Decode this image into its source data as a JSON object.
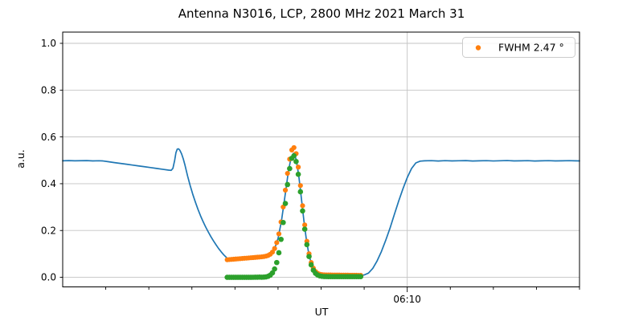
{
  "chart_data": {
    "type": "line+scatter",
    "title": "Antenna N3016, LCP, 2800 MHz 2021 March 31",
    "xlabel": "UT",
    "ylabel": "a.u.",
    "x_axis": {
      "unit": "minutes after 05:30 UT",
      "range_min": [
        0,
        60
      ],
      "major_tick": {
        "t": 40,
        "label": "06:10"
      },
      "minor_ticks_t": [
        5,
        10,
        15,
        20,
        25,
        30,
        35,
        45,
        50,
        55,
        60
      ],
      "grid_on_major": true
    },
    "y_axis": {
      "lim": [
        -0.041,
        1.048
      ],
      "ticks": [
        {
          "v": 0.0,
          "label": "0.0"
        },
        {
          "v": 0.2,
          "label": "0.2"
        },
        {
          "v": 0.4,
          "label": "0.4"
        },
        {
          "v": 0.6,
          "label": "0.6"
        },
        {
          "v": 0.8,
          "label": "0.8"
        },
        {
          "v": 1.0,
          "label": "1.0"
        }
      ],
      "grid": true
    },
    "legend": {
      "label": "FWHM 2.47 °",
      "position": "upper-right",
      "marker": "circle",
      "marker_color": "#ff7f0e"
    },
    "colors": {
      "signal": "#1f77b4",
      "scan": "#ff7f0e",
      "fit": "#2ca02c",
      "grid": "#c3c3c3",
      "spine": "#000000",
      "background": "#ffffff",
      "legend_border": "#cccccc"
    },
    "series": [
      {
        "name": "signal-line",
        "type": "line",
        "color_key": "signal",
        "line_width": 1.7,
        "points": [
          [
            0,
            0.498
          ],
          [
            0.7,
            0.4988
          ],
          [
            1.4,
            0.4978
          ],
          [
            2.1,
            0.4984
          ],
          [
            2.8,
            0.4989
          ],
          [
            3.5,
            0.4976
          ],
          [
            4.2,
            0.4982
          ],
          [
            4.6,
            0.4976
          ],
          [
            5.3,
            0.494
          ],
          [
            6,
            0.4903
          ],
          [
            6.7,
            0.4868
          ],
          [
            7.4,
            0.4833
          ],
          [
            8.1,
            0.4797
          ],
          [
            8.8,
            0.476
          ],
          [
            9.5,
            0.4726
          ],
          [
            10.2,
            0.469
          ],
          [
            10.9,
            0.4654
          ],
          [
            11.6,
            0.4618
          ],
          [
            12.3,
            0.458
          ],
          [
            12.6,
            0.4572
          ],
          [
            12.8,
            0.466
          ],
          [
            13,
            0.5
          ],
          [
            13.15,
            0.533
          ],
          [
            13.3,
            0.548
          ],
          [
            13.45,
            0.549
          ],
          [
            13.6,
            0.543
          ],
          [
            13.8,
            0.528
          ],
          [
            14,
            0.506
          ],
          [
            14.2,
            0.479
          ],
          [
            14.5,
            0.433
          ],
          [
            14.8,
            0.392
          ],
          [
            15.1,
            0.355
          ],
          [
            15.4,
            0.322
          ],
          [
            15.7,
            0.291
          ],
          [
            16,
            0.263
          ],
          [
            16.3,
            0.238
          ],
          [
            16.6,
            0.215
          ],
          [
            16.9,
            0.194
          ],
          [
            17.2,
            0.174
          ],
          [
            17.5,
            0.156
          ],
          [
            17.8,
            0.139
          ],
          [
            18.1,
            0.123
          ],
          [
            18.4,
            0.109
          ],
          [
            18.7,
            0.096
          ],
          [
            19,
            0.085
          ],
          [
            19.2,
            0.079
          ],
          [
            19.4,
            0.0765
          ],
          [
            20,
            0.0785
          ],
          [
            20.8,
            0.081
          ],
          [
            21.6,
            0.0835
          ],
          [
            22.4,
            0.086
          ],
          [
            23.2,
            0.0882
          ],
          [
            23.8,
            0.0905
          ],
          [
            24.2,
            0.096
          ],
          [
            24.6,
            0.122
          ],
          [
            25,
            0.166
          ],
          [
            25.4,
            0.241
          ],
          [
            25.8,
            0.345
          ],
          [
            26.2,
            0.452
          ],
          [
            26.5,
            0.509
          ],
          [
            26.8,
            0.53
          ],
          [
            27.1,
            0.505
          ],
          [
            27.4,
            0.436
          ],
          [
            27.7,
            0.341
          ],
          [
            28,
            0.243
          ],
          [
            28.3,
            0.158
          ],
          [
            28.6,
            0.095
          ],
          [
            28.9,
            0.054
          ],
          [
            29.2,
            0.03
          ],
          [
            29.5,
            0.017
          ],
          [
            29.8,
            0.0115
          ],
          [
            30.2,
            0.0093
          ],
          [
            30.8,
            0.0085
          ],
          [
            31.6,
            0.008
          ],
          [
            32.4,
            0.0082
          ],
          [
            33.2,
            0.0078
          ],
          [
            34,
            0.008
          ],
          [
            34.7,
            0.0085
          ],
          [
            35,
            0.01
          ],
          [
            35.5,
            0.018
          ],
          [
            36,
            0.038
          ],
          [
            36.5,
            0.07
          ],
          [
            37,
            0.11
          ],
          [
            37.5,
            0.158
          ],
          [
            38,
            0.21
          ],
          [
            38.5,
            0.268
          ],
          [
            39,
            0.325
          ],
          [
            39.5,
            0.378
          ],
          [
            40,
            0.426
          ],
          [
            40.5,
            0.465
          ],
          [
            41,
            0.489
          ],
          [
            41.5,
            0.4965
          ],
          [
            42,
            0.4978
          ],
          [
            42.8,
            0.4986
          ],
          [
            43.6,
            0.4971
          ],
          [
            44.4,
            0.4985
          ],
          [
            45.2,
            0.4974
          ],
          [
            46,
            0.4981
          ],
          [
            46.8,
            0.4987
          ],
          [
            47.6,
            0.497
          ],
          [
            48.4,
            0.498
          ],
          [
            49.2,
            0.4986
          ],
          [
            50,
            0.4973
          ],
          [
            50.8,
            0.4981
          ],
          [
            51.6,
            0.499
          ],
          [
            52.4,
            0.4975
          ],
          [
            53.2,
            0.498
          ],
          [
            54,
            0.4986
          ],
          [
            54.8,
            0.497
          ],
          [
            55.6,
            0.4979
          ],
          [
            56.4,
            0.4986
          ],
          [
            57.2,
            0.4974
          ],
          [
            58,
            0.498
          ],
          [
            58.8,
            0.4985
          ],
          [
            59.4,
            0.4978
          ],
          [
            60,
            0.4975
          ]
        ]
      },
      {
        "name": "scan-dots",
        "type": "scatter",
        "color_key": "scan",
        "radius": 3.1,
        "in_legend": true,
        "points": [
          [
            19.1,
            0.075
          ],
          [
            19.35,
            0.0758
          ],
          [
            19.6,
            0.0765
          ],
          [
            19.85,
            0.0773
          ],
          [
            20.1,
            0.0781
          ],
          [
            20.35,
            0.0789
          ],
          [
            20.6,
            0.0796
          ],
          [
            20.85,
            0.0804
          ],
          [
            21.1,
            0.0812
          ],
          [
            21.35,
            0.0819
          ],
          [
            21.6,
            0.0827
          ],
          [
            21.85,
            0.0835
          ],
          [
            22.1,
            0.0842
          ],
          [
            22.35,
            0.085
          ],
          [
            22.6,
            0.0858
          ],
          [
            22.85,
            0.0866
          ],
          [
            23.1,
            0.0874
          ],
          [
            23.35,
            0.0885
          ],
          [
            23.6,
            0.0904
          ],
          [
            23.85,
            0.0933
          ],
          [
            24.1,
            0.0984
          ],
          [
            24.35,
            0.1076
          ],
          [
            24.6,
            0.1231
          ],
          [
            24.85,
            0.1481
          ],
          [
            25.1,
            0.1855
          ],
          [
            25.35,
            0.2366
          ],
          [
            25.6,
            0.3004
          ],
          [
            25.85,
            0.3724
          ],
          [
            26.1,
            0.4442
          ],
          [
            26.35,
            0.5048
          ],
          [
            26.6,
            0.5441
          ],
          [
            26.85,
            0.5543
          ],
          [
            27.1,
            0.5285
          ],
          [
            27.35,
            0.4709
          ],
          [
            27.6,
            0.3923
          ],
          [
            27.85,
            0.3059
          ],
          [
            28.1,
            0.2237
          ],
          [
            28.35,
            0.154
          ],
          [
            28.6,
            0.1005
          ],
          [
            28.85,
            0.0631
          ],
          [
            29.1,
            0.0391
          ],
          [
            29.35,
            0.0249
          ],
          [
            29.6,
            0.0171
          ],
          [
            29.85,
            0.0132
          ],
          [
            30.1,
            0.0113
          ],
          [
            30.35,
            0.0105
          ],
          [
            30.6,
            0.0101
          ],
          [
            30.85,
            0.01
          ],
          [
            31.1,
            0.0099
          ],
          [
            31.35,
            0.0098
          ],
          [
            31.6,
            0.0097
          ],
          [
            31.85,
            0.0096
          ],
          [
            32.1,
            0.0095
          ],
          [
            32.35,
            0.0094
          ],
          [
            32.6,
            0.0093
          ],
          [
            32.85,
            0.0092
          ],
          [
            33.1,
            0.0091
          ],
          [
            33.35,
            0.009
          ],
          [
            33.6,
            0.0089
          ],
          [
            33.85,
            0.0088
          ],
          [
            34.1,
            0.0087
          ],
          [
            34.35,
            0.0086
          ],
          [
            34.6,
            0.0085
          ]
        ]
      },
      {
        "name": "fit-dots",
        "type": "scatter",
        "color_key": "fit",
        "radius": 3.3,
        "points": [
          [
            19.1,
            0
          ],
          [
            19.35,
            0
          ],
          [
            19.6,
            0
          ],
          [
            19.85,
            0
          ],
          [
            20.1,
            0
          ],
          [
            20.35,
            0
          ],
          [
            20.6,
            0
          ],
          [
            20.85,
            0
          ],
          [
            21.1,
            0
          ],
          [
            21.35,
            0
          ],
          [
            21.6,
            0.0001
          ],
          [
            21.85,
            0.0001
          ],
          [
            22.1,
            0.0002
          ],
          [
            22.35,
            0.0003
          ],
          [
            22.6,
            0.0005
          ],
          [
            22.85,
            0.0009
          ],
          [
            23.1,
            0.0003
          ],
          [
            23.35,
            0.0007
          ],
          [
            23.6,
            0.0017
          ],
          [
            23.85,
            0.0042
          ],
          [
            24.1,
            0.0092
          ],
          [
            24.35,
            0.0187
          ],
          [
            24.6,
            0.0356
          ],
          [
            24.85,
            0.0632
          ],
          [
            25.1,
            0.1049
          ],
          [
            25.35,
            0.1622
          ],
          [
            25.6,
            0.2342
          ],
          [
            25.85,
            0.3154
          ],
          [
            26.1,
            0.3964
          ],
          [
            26.35,
            0.4647
          ],
          [
            26.6,
            0.5086
          ],
          [
            26.85,
            0.5193
          ],
          [
            27.1,
            0.4949
          ],
          [
            27.35,
            0.4402
          ],
          [
            27.6,
            0.3656
          ],
          [
            27.85,
            0.2837
          ],
          [
            28.1,
            0.2057
          ],
          [
            28.35,
            0.1396
          ],
          [
            28.6,
            0.0889
          ],
          [
            28.85,
            0.0534
          ],
          [
            29.1,
            0.0306
          ],
          [
            29.35,
            0.0171
          ],
          [
            29.6,
            0.0097
          ],
          [
            29.85,
            0.006
          ],
          [
            30.1,
            0.0042
          ],
          [
            30.35,
            0.0035
          ],
          [
            30.6,
            0.0032
          ],
          [
            30.85,
            0.0031
          ],
          [
            31.1,
            0.003
          ],
          [
            31.35,
            0.003
          ],
          [
            31.6,
            0.003
          ],
          [
            31.85,
            0.003
          ],
          [
            32.1,
            0.003
          ],
          [
            32.35,
            0.003
          ],
          [
            32.6,
            0.003
          ],
          [
            32.85,
            0.003
          ],
          [
            33.1,
            0.003
          ],
          [
            33.35,
            0.003
          ],
          [
            33.6,
            0.003
          ],
          [
            33.85,
            0.003
          ],
          [
            34.1,
            0.003
          ],
          [
            34.35,
            0.003
          ],
          [
            34.6,
            0.003
          ]
        ]
      }
    ]
  }
}
